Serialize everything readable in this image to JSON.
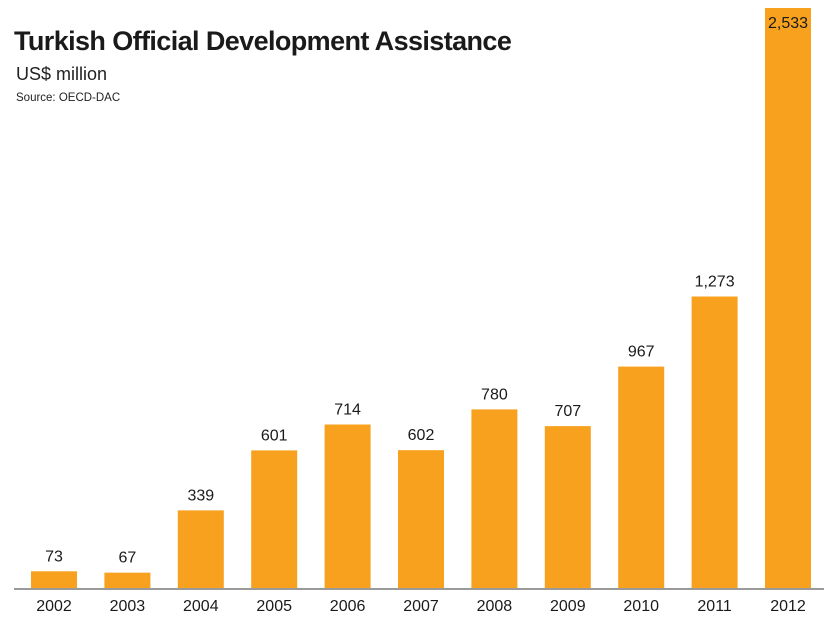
{
  "chart_data": {
    "type": "bar",
    "title": "Turkish Official Development Assistance",
    "subtitle": "US$ million",
    "source": "Source: OECD-DAC",
    "categories": [
      "2002",
      "2003",
      "2004",
      "2005",
      "2006",
      "2007",
      "2008",
      "2009",
      "2010",
      "2011",
      "2012"
    ],
    "values": [
      73,
      67,
      339,
      601,
      714,
      602,
      780,
      707,
      967,
      1273,
      2533
    ],
    "value_labels": [
      "73",
      "67",
      "339",
      "601",
      "714",
      "602",
      "780",
      "707",
      "967",
      "1,273",
      "2,533"
    ],
    "xlabel": "",
    "ylabel": "US$ million",
    "ylim": [
      0,
      2533
    ],
    "grid": false,
    "bar_color": "#F7A11F",
    "label_inside_color": "#1a1a1a"
  }
}
